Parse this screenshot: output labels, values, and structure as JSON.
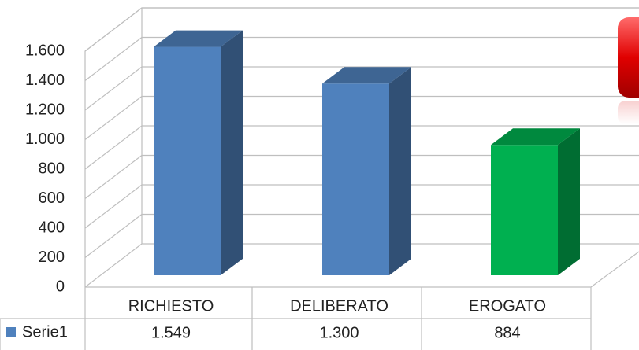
{
  "chart_data": {
    "type": "bar3d",
    "categories": [
      "RICHIESTO",
      "DELIBERATO",
      "EROGATO"
    ],
    "series": [
      {
        "name": "Serie1",
        "color": "#4f81bd",
        "colors": [
          "#4f81bd",
          "#4f81bd",
          "#00b050"
        ],
        "values": [
          1549,
          1300,
          884
        ],
        "value_labels": [
          "1.549",
          "1.300",
          "884"
        ]
      }
    ],
    "ylim": [
      0,
      1600
    ],
    "yticks": [
      0,
      200,
      400,
      600,
      800,
      {
        "value": 1000,
        "label": "1.000"
      },
      {
        "value": 1200,
        "label": "1.200"
      },
      {
        "value": 1400,
        "label": "1.400"
      },
      {
        "value": 1600,
        "label": "1.600"
      }
    ],
    "grid": true,
    "data_table": true
  }
}
